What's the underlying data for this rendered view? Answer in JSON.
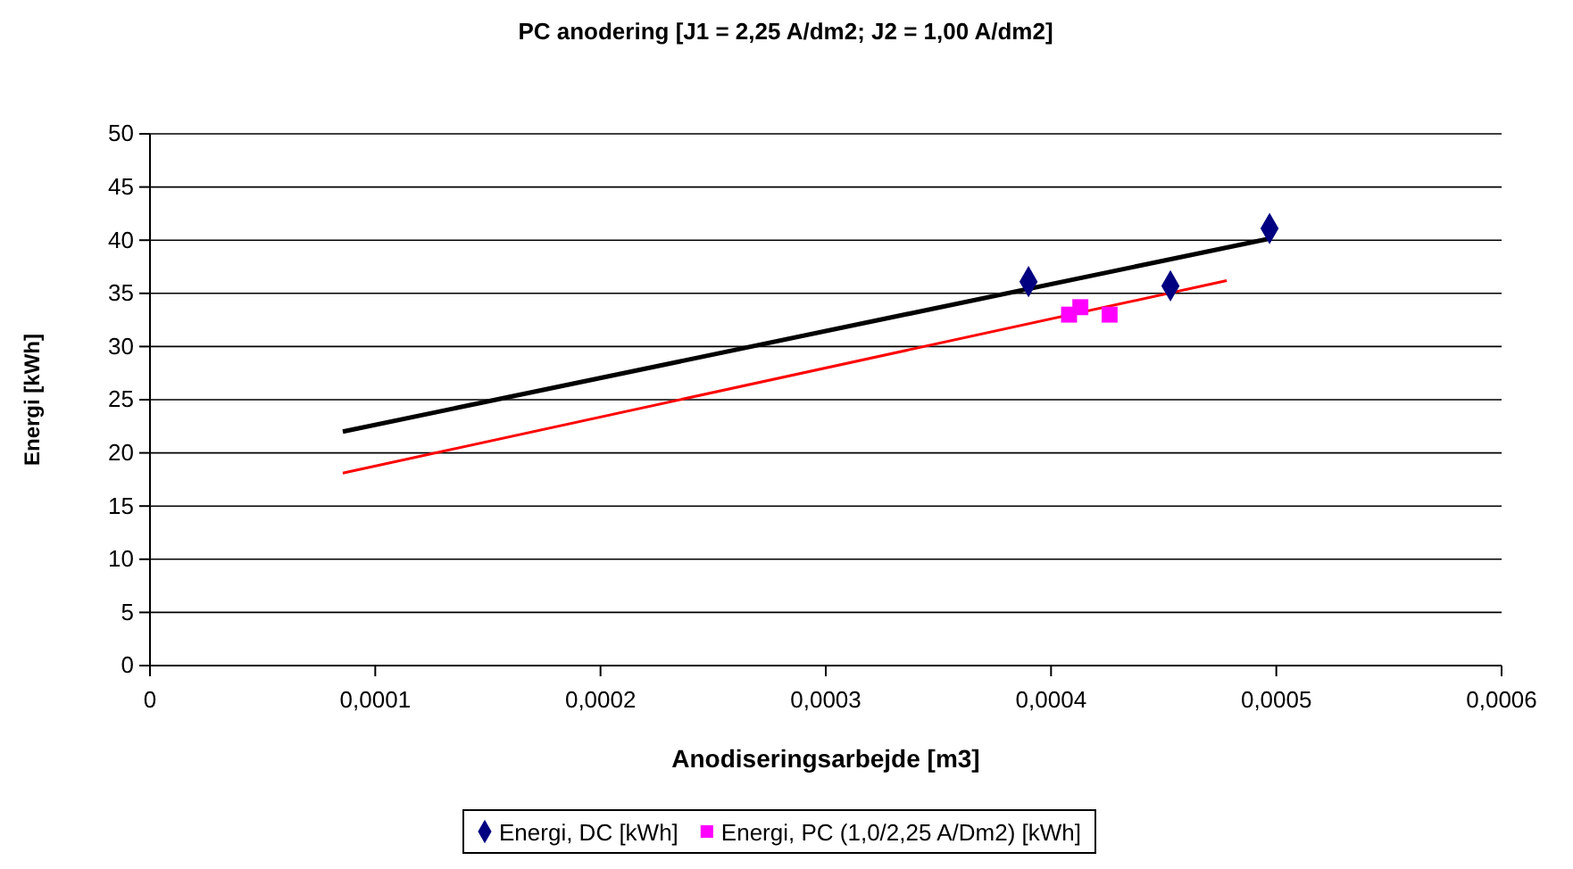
{
  "chart_data": {
    "type": "scatter",
    "title": "PC anodering [J1 = 2,25 A/dm2; J2 = 1,00 A/dm2]",
    "xlabel": "Anodiseringsarbejde [m3]",
    "ylabel": "Energi [kWh]",
    "xlim": [
      0,
      0.0006
    ],
    "xticks": [
      {
        "value": 0,
        "label": "0"
      },
      {
        "value": 0.0001,
        "label": "0,0001"
      },
      {
        "value": 0.0002,
        "label": "0,0002"
      },
      {
        "value": 0.0003,
        "label": "0,0003"
      },
      {
        "value": 0.0004,
        "label": "0,0004"
      },
      {
        "value": 0.0005,
        "label": "0,0005"
      },
      {
        "value": 0.0006,
        "label": "0,0006"
      }
    ],
    "ylim": [
      0,
      50
    ],
    "yticks": [
      0,
      5,
      10,
      15,
      20,
      25,
      30,
      35,
      40,
      45,
      50
    ],
    "grid": "y",
    "legend": "bottom",
    "series": [
      {
        "type": "line",
        "color": "#000000",
        "x": [
          8.56e-05,
          0.000496
        ],
        "values": [
          22.0,
          40.1
        ],
        "marker": "none"
      },
      {
        "type": "line",
        "color": "#ff0000",
        "x": [
          8.56e-05,
          0.000478
        ],
        "values": [
          18.1,
          36.2
        ],
        "marker": "none"
      },
      {
        "name": "Energi, DC [kWh]",
        "color": "#000080",
        "marker": "diamond",
        "x": [
          0.00039,
          0.000453,
          0.000497
        ],
        "values": [
          36.1,
          35.7,
          41.1
        ]
      },
      {
        "name": "Energi, PC (1,0/2,25 A/Dm2) [kWh]",
        "color": "#ff00ff",
        "marker": "square",
        "x": [
          0.000408,
          0.000413,
          0.000426
        ],
        "values": [
          33.0,
          33.7,
          33.0
        ]
      }
    ]
  }
}
